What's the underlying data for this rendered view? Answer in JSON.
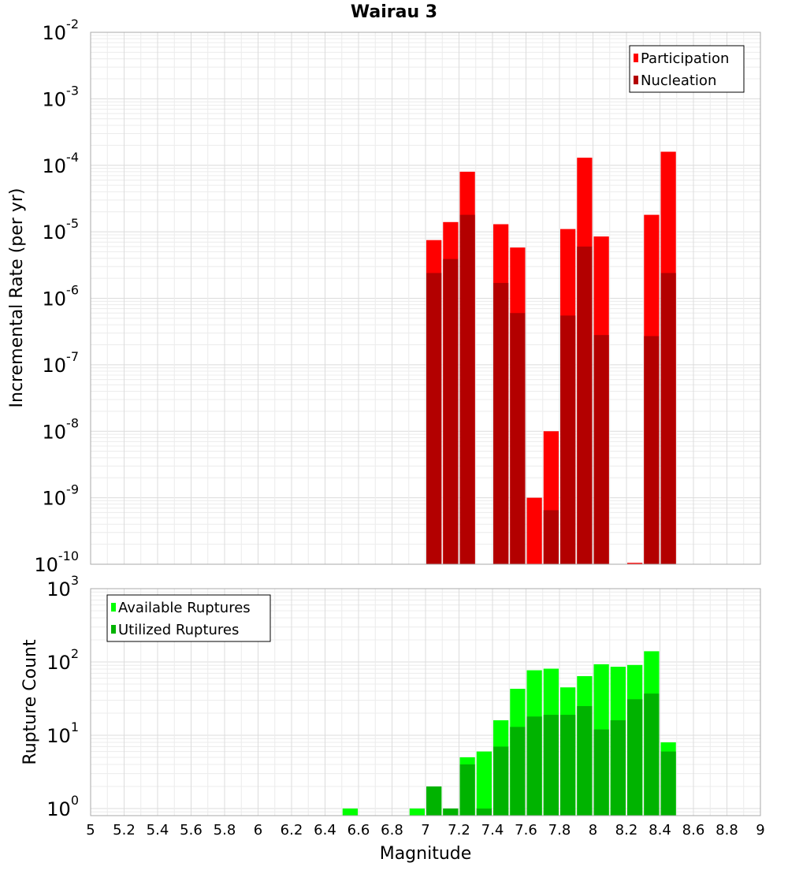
{
  "chart_data": [
    {
      "type": "bar",
      "title": "Wairau 3",
      "ylabel": "Incremental Rate (per yr)",
      "xlabel": "",
      "xlim": [
        5,
        9
      ],
      "ylim": [
        1e-10,
        0.01
      ],
      "yscale": "log",
      "y_tick_exponents": [
        "-2",
        "-3",
        "-4",
        "-5",
        "-6",
        "-7",
        "-8",
        "-9",
        "-10"
      ],
      "bar_width": 0.1,
      "grid": true,
      "legend_position": "top-right",
      "series": [
        {
          "name": "Participation",
          "color": "#ff0000",
          "x": [
            7.05,
            7.15,
            7.25,
            7.45,
            7.55,
            7.65,
            7.75,
            7.85,
            7.95,
            8.05,
            8.25,
            8.35,
            8.45
          ],
          "values": [
            7.5e-06,
            1.4e-05,
            8e-05,
            1.3e-05,
            5.8e-06,
            1e-09,
            1e-08,
            1.1e-05,
            0.00013,
            8.5e-06,
            1.05e-10,
            1.8e-05,
            0.00016
          ]
        },
        {
          "name": "Nucleation",
          "color": "#b30000",
          "x": [
            7.05,
            7.15,
            7.25,
            7.45,
            7.55,
            7.75,
            7.85,
            7.95,
            8.05,
            8.35,
            8.45
          ],
          "values": [
            2.4e-06,
            3.9e-06,
            1.8e-05,
            1.7e-06,
            6e-07,
            6.5e-10,
            5.5e-07,
            6e-06,
            2.8e-07,
            2.7e-07,
            2.4e-06
          ]
        }
      ]
    },
    {
      "type": "bar",
      "title": "",
      "ylabel": "Rupture Count",
      "xlabel": "Magnitude",
      "xlim": [
        5,
        9
      ],
      "ylim": [
        0.8,
        1000
      ],
      "yscale": "log",
      "y_tick_exponents": [
        "3",
        "2",
        "1",
        "0"
      ],
      "x_tick_labels": [
        "5",
        "5.2",
        "5.4",
        "5.6",
        "5.8",
        "6",
        "6.2",
        "6.4",
        "6.6",
        "6.8",
        "7",
        "7.2",
        "7.4",
        "7.6",
        "7.8",
        "8",
        "8.2",
        "8.4",
        "8.6",
        "8.8",
        "9"
      ],
      "bar_width": 0.1,
      "grid": true,
      "legend_position": "top-left",
      "series": [
        {
          "name": "Available Ruptures",
          "color": "#00ff00",
          "x": [
            6.55,
            6.95,
            7.05,
            7.15,
            7.25,
            7.35,
            7.45,
            7.55,
            7.65,
            7.75,
            7.85,
            7.95,
            8.05,
            8.15,
            8.25,
            8.35,
            8.45
          ],
          "values": [
            1,
            1,
            2,
            1,
            5,
            6,
            16,
            43,
            77,
            81,
            45,
            64,
            93,
            86,
            91,
            140,
            8
          ]
        },
        {
          "name": "Utilized Ruptures",
          "color": "#00b300",
          "x": [
            7.05,
            7.15,
            7.25,
            7.35,
            7.45,
            7.55,
            7.65,
            7.75,
            7.85,
            7.95,
            8.05,
            8.15,
            8.25,
            8.35,
            8.45
          ],
          "values": [
            2,
            1,
            4,
            1,
            7,
            13,
            18,
            19,
            19,
            25,
            12,
            16,
            31,
            37,
            6
          ]
        }
      ]
    }
  ]
}
